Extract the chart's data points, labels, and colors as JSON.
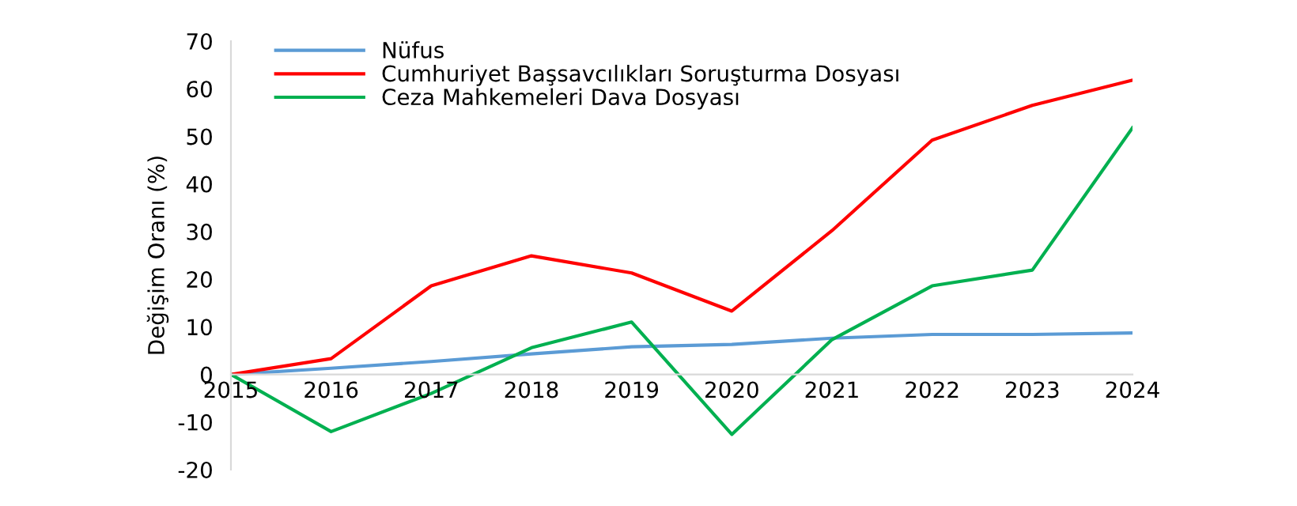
{
  "chart_data": {
    "type": "line",
    "ylabel": "Değişim Oranı (%)",
    "categories": [
      "2015",
      "2016",
      "2017",
      "2018",
      "2019",
      "2020",
      "2021",
      "2022",
      "2023",
      "2024"
    ],
    "series": [
      {
        "name": "Nüfus",
        "color": "#5b9bd5",
        "values": [
          0,
          1.3,
          2.7,
          4.3,
          5.8,
          6.3,
          7.6,
          8.4,
          8.4,
          8.7
        ]
      },
      {
        "name": "Cumhuriyet Başsavcılıkları Soruşturma Dosyası",
        "color": "#ff0000",
        "values": [
          0,
          3.3,
          18.6,
          24.9,
          21.3,
          13.3,
          30.2,
          49.2,
          56.5,
          61.8
        ]
      },
      {
        "name": "Ceza Mahkemeleri Dava Dosyası",
        "color": "#00b050",
        "values": [
          0,
          -12,
          -4,
          5.6,
          11,
          -12.6,
          7.3,
          18.6,
          21.9,
          51.8
        ]
      }
    ],
    "ylim": [
      -20,
      70
    ],
    "yticks": [
      -20,
      -10,
      0,
      10,
      20,
      30,
      40,
      50,
      60,
      70
    ],
    "grid": false,
    "legend": "top left",
    "marker": "none",
    "line_style": "solid"
  }
}
